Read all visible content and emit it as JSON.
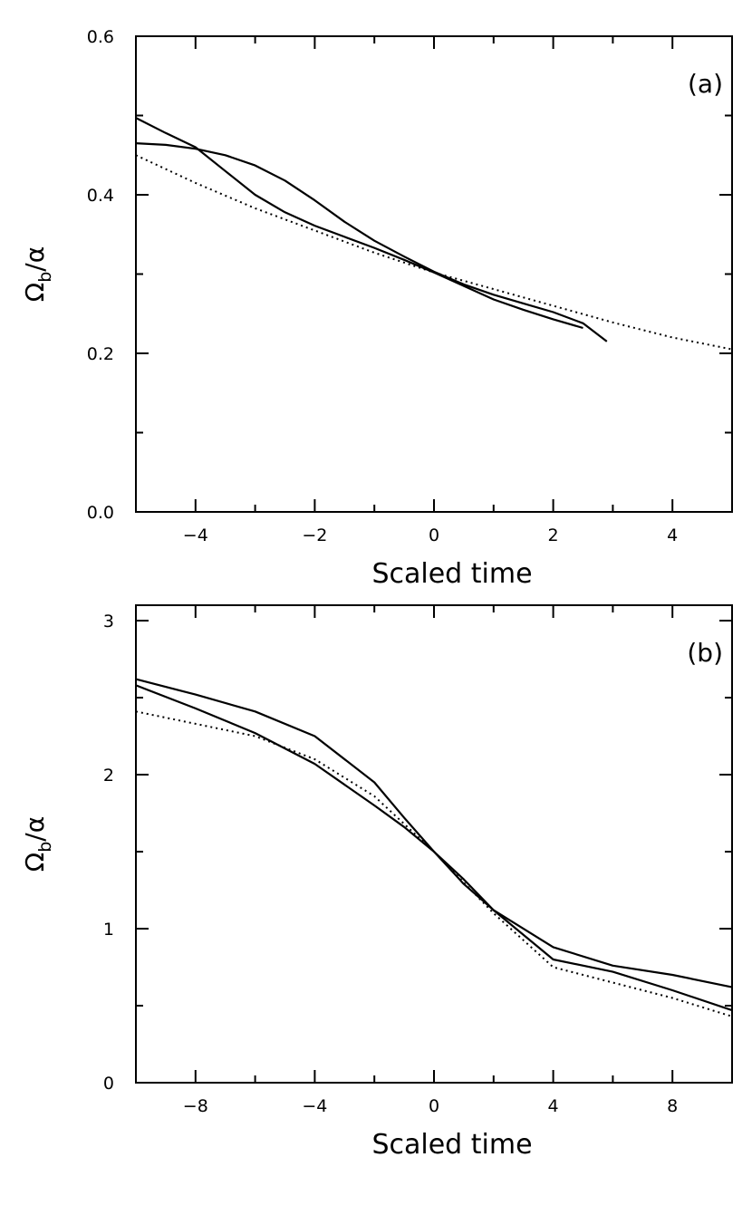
{
  "chart_data": [
    {
      "type": "line",
      "panel_label": "(a)",
      "xlabel": "Scaled time",
      "ylabel": "Ω_b/α",
      "ylabel_main": "Ω",
      "ylabel_sub": "b",
      "ylabel_tail": "/α",
      "xlim": [
        -5,
        5
      ],
      "ylim": [
        0.0,
        0.6
      ],
      "xticks": [
        -4,
        -2,
        0,
        2,
        4
      ],
      "xtick_labels": [
        "−4",
        "−2",
        "0",
        "2",
        "4"
      ],
      "yticks": [
        0.0,
        0.2,
        0.4,
        0.6
      ],
      "ytick_labels": [
        "0.0",
        "0.2",
        "0.4",
        "0.6"
      ],
      "x_minor_step": 1,
      "y_minor_step": 0.1,
      "grid": false,
      "series": [
        {
          "style": "solid",
          "x": [
            -5,
            -4.5,
            -4,
            -3.5,
            -3,
            -2.5,
            -2,
            -1.5,
            -1,
            -0.5,
            0,
            0.5,
            1,
            1.5,
            2,
            2.5,
            2.9
          ],
          "y": [
            0.465,
            0.463,
            0.458,
            0.45,
            0.437,
            0.418,
            0.393,
            0.366,
            0.342,
            0.322,
            0.303,
            0.287,
            0.274,
            0.263,
            0.252,
            0.238,
            0.215
          ]
        },
        {
          "style": "solid",
          "x": [
            -5,
            -4.5,
            -4,
            -3.5,
            -3,
            -2.5,
            -2,
            -1.5,
            -1,
            -0.5,
            0,
            0.5,
            1,
            1.5,
            2,
            2.5
          ],
          "y": [
            0.497,
            0.478,
            0.46,
            0.43,
            0.4,
            0.378,
            0.361,
            0.347,
            0.333,
            0.318,
            0.302,
            0.285,
            0.268,
            0.255,
            0.243,
            0.232
          ]
        },
        {
          "style": "dotted",
          "x": [
            -5,
            -4,
            -3,
            -2,
            -1,
            0,
            1,
            2,
            3,
            4,
            5
          ],
          "y": [
            0.45,
            0.415,
            0.383,
            0.355,
            0.327,
            0.302,
            0.281,
            0.26,
            0.239,
            0.22,
            0.205
          ]
        }
      ]
    },
    {
      "type": "line",
      "panel_label": "(b)",
      "xlabel": "Scaled time",
      "ylabel": "Ω_b/α",
      "ylabel_main": "Ω",
      "ylabel_sub": "b",
      "ylabel_tail": "/α",
      "xlim": [
        -10,
        10
      ],
      "ylim": [
        0,
        3.1
      ],
      "xticks": [
        -8,
        -4,
        0,
        4,
        8
      ],
      "xtick_labels": [
        "−8",
        "−4",
        "0",
        "4",
        "8"
      ],
      "yticks": [
        0,
        1,
        2,
        3
      ],
      "ytick_labels": [
        "0",
        "1",
        "2",
        "3"
      ],
      "x_minor_step": 2,
      "y_minor_step": 0.5,
      "grid": false,
      "series": [
        {
          "style": "solid",
          "x": [
            -10,
            -8,
            -6,
            -4,
            -2,
            -1,
            0,
            1,
            2,
            4,
            6,
            8,
            10
          ],
          "y": [
            2.62,
            2.52,
            2.41,
            2.25,
            1.95,
            1.72,
            1.5,
            1.29,
            1.12,
            0.88,
            0.76,
            0.7,
            0.62
          ]
        },
        {
          "style": "solid",
          "x": [
            -10,
            -8,
            -6,
            -4,
            -2,
            -1,
            0,
            1,
            2,
            4,
            6,
            8,
            10
          ],
          "y": [
            2.58,
            2.43,
            2.27,
            2.07,
            1.8,
            1.66,
            1.5,
            1.32,
            1.12,
            0.8,
            0.72,
            0.6,
            0.47
          ]
        },
        {
          "style": "dotted",
          "x": [
            -10,
            -8,
            -6,
            -4,
            -2,
            -1,
            0,
            1,
            2,
            4,
            6,
            8,
            10
          ],
          "y": [
            2.41,
            2.33,
            2.25,
            2.1,
            1.86,
            1.68,
            1.5,
            1.3,
            1.1,
            0.75,
            0.65,
            0.55,
            0.43
          ]
        }
      ]
    }
  ]
}
